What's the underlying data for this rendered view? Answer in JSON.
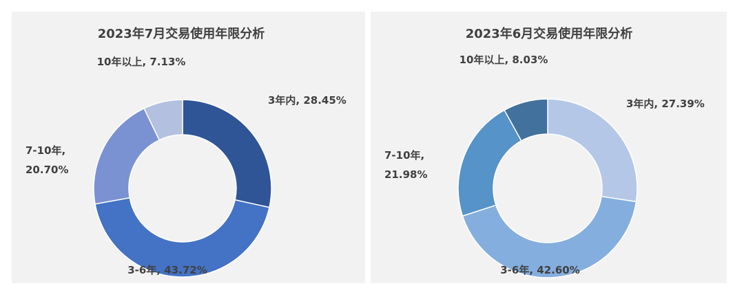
{
  "chart_data": [
    {
      "type": "pie",
      "subtype": "donut",
      "title": "2023年7月交易使用年限分析",
      "categories": [
        "3年内",
        "3-6年",
        "7-10年",
        "10年以上"
      ],
      "values": [
        28.45,
        43.72,
        20.7,
        7.13
      ],
      "unit": "%",
      "colors": [
        "#2f5597",
        "#4472c4",
        "#7a92d1",
        "#b4c0e0"
      ],
      "data_labels": [
        [
          "3年内, 28.45%"
        ],
        [
          "3-6年, 43.72%"
        ],
        [
          "7-10年,",
          "20.70%"
        ],
        [
          "10年以上, 7.13%"
        ]
      ]
    },
    {
      "type": "pie",
      "subtype": "donut",
      "title": "2023年6月交易使用年限分析",
      "categories": [
        "3年内",
        "3-6年",
        "7-10年",
        "10年以上"
      ],
      "values": [
        27.39,
        42.6,
        21.98,
        8.03
      ],
      "unit": "%",
      "colors": [
        "#b4c7e7",
        "#84aede",
        "#5593c9",
        "#41719c"
      ],
      "data_labels": [
        [
          "3年内, 27.39%"
        ],
        [
          "3-6年, 42.60%"
        ],
        [
          "7-10年,",
          "21.98%"
        ],
        [
          "10年以上, 8.03%"
        ]
      ]
    }
  ]
}
